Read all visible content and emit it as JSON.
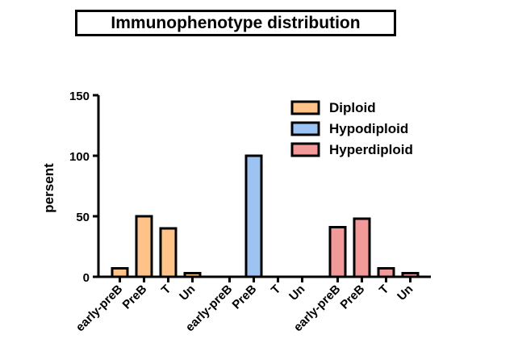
{
  "chart_data": {
    "type": "bar",
    "title": "Immunophenotype distribution",
    "xlabel": "",
    "ylabel": "persent",
    "ylim": [
      0,
      150
    ],
    "yticks": [
      0,
      50,
      100,
      150
    ],
    "grid": false,
    "legend_position": "top-right",
    "groups": [
      {
        "name": "Diploid",
        "color": "#FFC38A",
        "categories": [
          "early-preB",
          "PreB",
          "T",
          "Un"
        ],
        "values": [
          7,
          50,
          40,
          3
        ]
      },
      {
        "name": "Hypodiploid",
        "color": "#9DC3F2",
        "categories": [
          "early-preB",
          "PreB",
          "T",
          "Un"
        ],
        "values": [
          0,
          100,
          0,
          0
        ]
      },
      {
        "name": "Hyperdiploid",
        "color": "#F29A9A",
        "categories": [
          "early-preB",
          "PreB",
          "T",
          "Un"
        ],
        "values": [
          41,
          48,
          7,
          3
        ]
      }
    ]
  }
}
